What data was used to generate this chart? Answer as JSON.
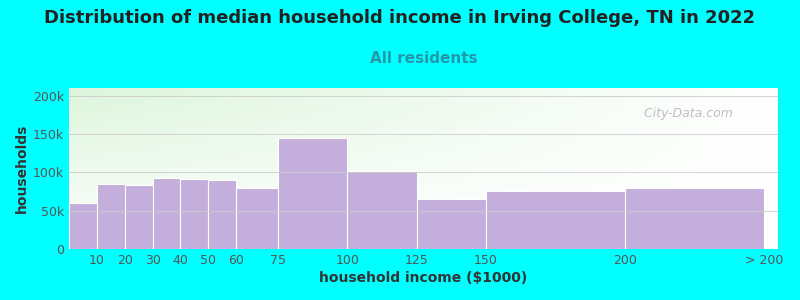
{
  "title": "Distribution of median household income in Irving College, TN in 2022",
  "subtitle": "All residents",
  "xlabel": "household income ($1000)",
  "ylabel": "households",
  "background_color": "#00FFFF",
  "bar_color": "#C4AEDB",
  "bar_edge_color": "#FFFFFF",
  "widths": [
    10,
    10,
    10,
    10,
    10,
    10,
    15,
    25,
    25,
    25,
    50,
    50
  ],
  "lefts": [
    0,
    10,
    20,
    30,
    40,
    50,
    60,
    75,
    100,
    125,
    150,
    200
  ],
  "values": [
    60000,
    85000,
    83000,
    93000,
    91000,
    90000,
    80000,
    145000,
    102000,
    65000,
    75000,
    80000
  ],
  "ylim": [
    0,
    210000
  ],
  "yticks": [
    0,
    50000,
    100000,
    150000,
    200000
  ],
  "ytick_labels": [
    "0",
    "50k",
    "100k",
    "150k",
    "200k"
  ],
  "xticks": [
    10,
    20,
    30,
    40,
    50,
    60,
    75,
    100,
    125,
    150,
    200,
    250
  ],
  "xtick_labels": [
    "10",
    "20",
    "30",
    "40",
    "50",
    "60",
    "75",
    "100",
    "125",
    "150",
    "200",
    "> 200"
  ],
  "watermark": "  City-Data.com",
  "title_fontsize": 13,
  "subtitle_fontsize": 11,
  "label_fontsize": 10,
  "tick_fontsize": 9,
  "title_color": "#222222",
  "subtitle_color": "#2299AA",
  "tick_color": "#555555",
  "label_color": "#333333"
}
